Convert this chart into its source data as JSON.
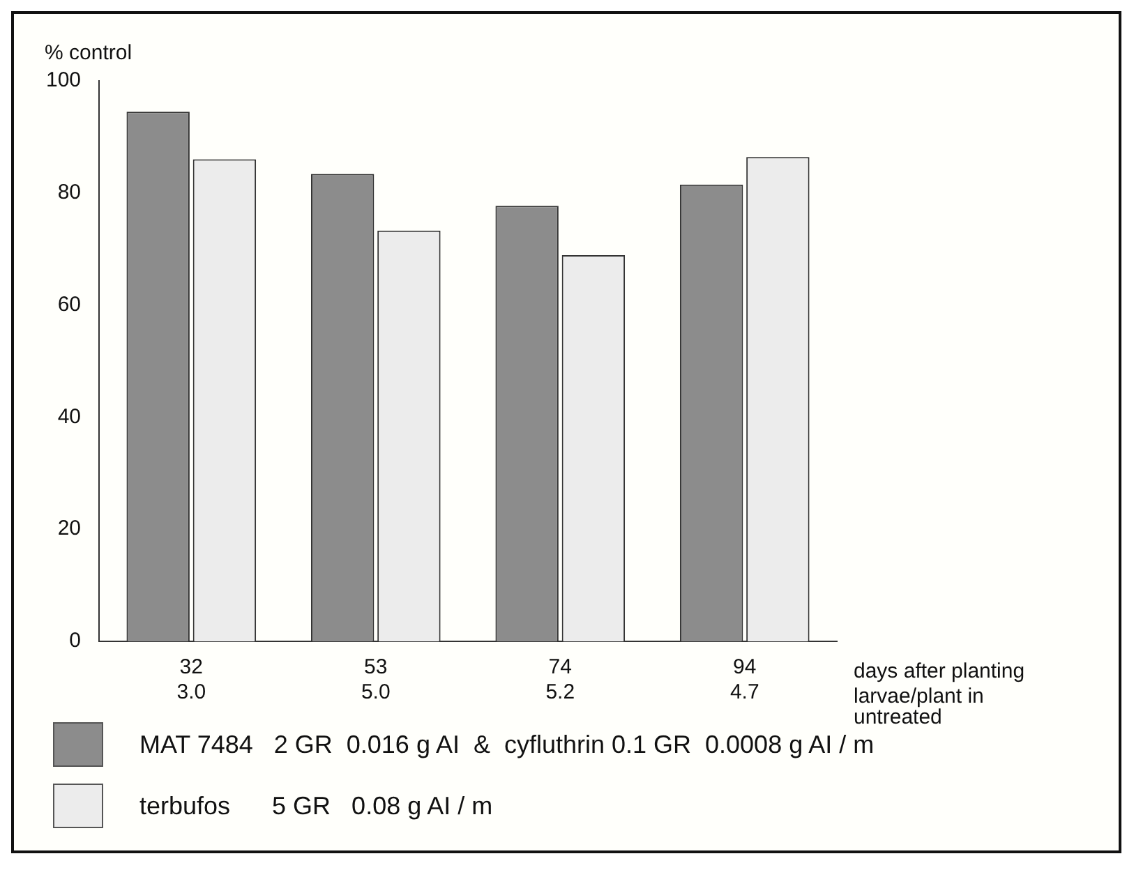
{
  "chart_data": {
    "type": "bar",
    "ylabel": "% control",
    "xlabel": "days after planting",
    "categories": [
      "32\n3.0",
      "53\n5.0",
      "74\n5.2",
      "94\n4.7"
    ],
    "series": [
      {
        "name": "MAT 7484   2 GR  0.016 g AI  &  cyfluthrin 0.1 GR  0.0008 g AI / m",
        "color": "#8c8c8c",
        "values": [
          94.5,
          83.4,
          77.7,
          81.5
        ]
      },
      {
        "name": "terbufos      5 GR   0.08 g AI / m",
        "color": "#ececec",
        "values": [
          86,
          73.3,
          68.9,
          86.4
        ]
      }
    ],
    "annotations": [
      "larvae/plant in\nuntreated"
    ],
    "ylim": [
      0,
      100
    ],
    "yticks": [
      0,
      20,
      40,
      60,
      80,
      100
    ],
    "grid": false,
    "legend": "bottom"
  }
}
